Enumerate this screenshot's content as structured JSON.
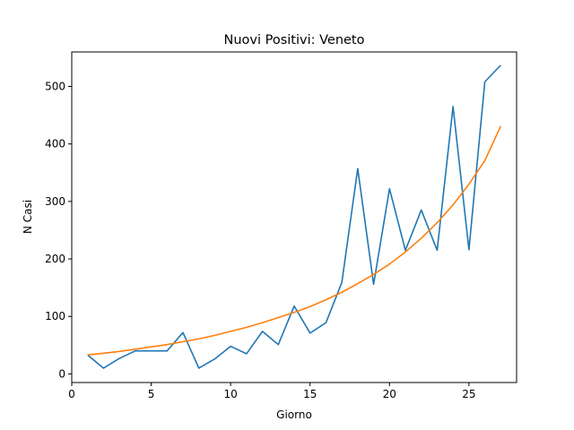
{
  "chart_data": {
    "type": "line",
    "title": "Nuovi Positivi: Veneto",
    "xlabel": "Giorno",
    "ylabel": "N Casi",
    "xlim": [
      0,
      28
    ],
    "ylim": [
      -15,
      560
    ],
    "xticks": [
      0,
      5,
      10,
      15,
      20,
      25
    ],
    "yticks": [
      0,
      100,
      200,
      300,
      400,
      500
    ],
    "grid": false,
    "x": [
      1,
      2,
      3,
      4,
      5,
      6,
      7,
      8,
      9,
      10,
      11,
      12,
      13,
      14,
      15,
      16,
      17,
      18,
      19,
      20,
      21,
      22,
      23,
      24,
      25,
      26,
      27
    ],
    "series": [
      {
        "color": "#1f77b4",
        "values": [
          33,
          10,
          27,
          40,
          40,
          40,
          72,
          10,
          26,
          48,
          35,
          74,
          51,
          118,
          71,
          89,
          159,
          357,
          156,
          322,
          215,
          285,
          215,
          465,
          216,
          508,
          537
        ]
      },
      {
        "color": "#ff7f0e",
        "values": [
          33,
          36,
          39,
          43,
          47,
          51,
          56,
          61,
          67,
          74,
          81,
          89,
          98,
          107,
          117,
          129,
          142,
          157,
          173,
          191,
          212,
          236,
          263,
          294,
          330,
          371,
          431
        ]
      }
    ]
  }
}
